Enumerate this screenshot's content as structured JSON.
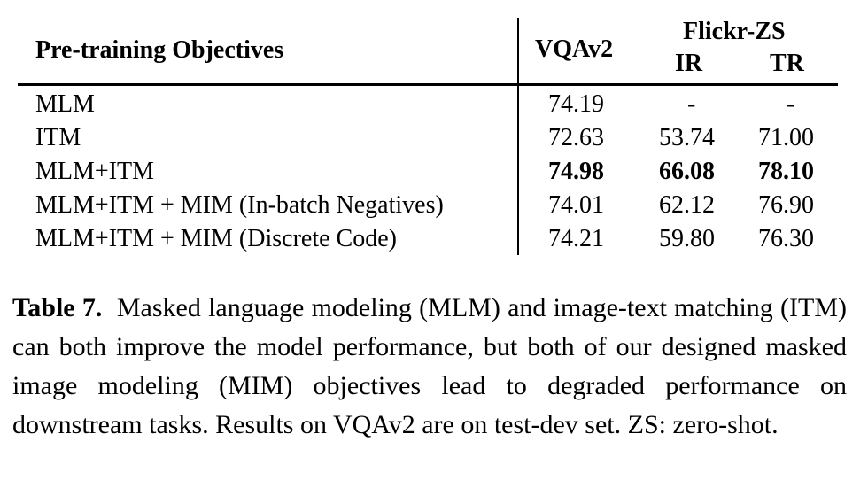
{
  "table": {
    "header": {
      "objective": "Pre-training Objectives",
      "vqa": "VQAv2",
      "group": "Flickr-ZS",
      "ir": "IR",
      "tr": "TR"
    },
    "rows": [
      {
        "objective": "MLM",
        "vqa": "74.19",
        "ir": "-",
        "tr": "-"
      },
      {
        "objective": "ITM",
        "vqa": "72.63",
        "ir": "53.74",
        "tr": "71.00"
      },
      {
        "objective": "MLM+ITM",
        "vqa": "74.98",
        "ir": "66.08",
        "tr": "78.10"
      },
      {
        "objective": "MLM+ITM + MIM (In-batch Negatives)",
        "vqa": "74.01",
        "ir": "62.12",
        "tr": "76.90"
      },
      {
        "objective": "MLM+ITM + MIM (Discrete Code)",
        "vqa": "74.21",
        "ir": "59.80",
        "tr": "76.30"
      }
    ]
  },
  "caption": {
    "label": "Table 7.",
    "text": "Masked language modeling (MLM) and image-text matching (ITM) can both improve the model performance, but both of our designed masked image modeling (MIM) objectives lead to degraded performance on downstream tasks. Results on VQAv2 are on test-dev set. ZS: zero-shot."
  }
}
